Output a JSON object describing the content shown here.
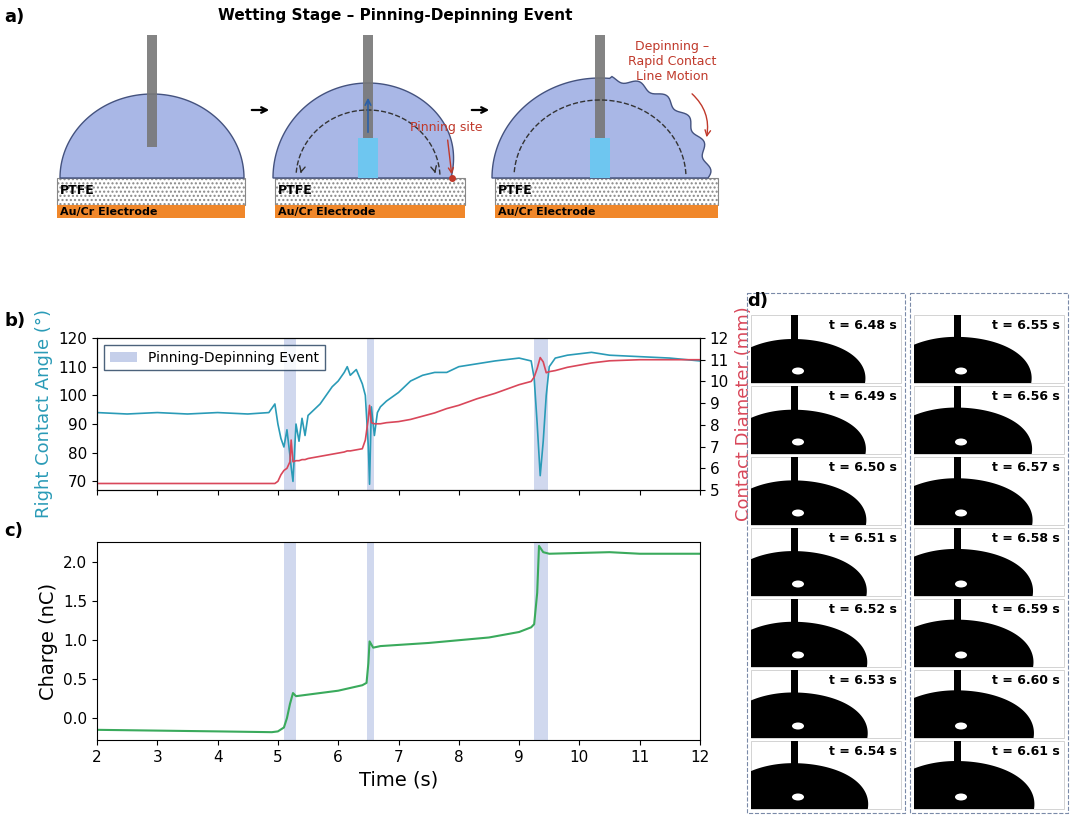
{
  "panel_labels": [
    "a)",
    "b)",
    "c)",
    "d)"
  ],
  "diagram": {
    "title": "Wetting Stage – Pinning-Depinning Event",
    "substrate_layers": [
      "PTFE",
      "Au/Cr Electrode"
    ],
    "pinning_label": "Pinning site",
    "depinning_label": "Depinning –\nRapid Contact\nLine Motion"
  },
  "chart_data": [
    {
      "type": "line",
      "ylabel": "Right Contact Angle (°)",
      "y2label": "Contact Diameter (mm)",
      "x": [
        2.0,
        2.5,
        3.0,
        3.5,
        4.0,
        4.5,
        4.85,
        4.95,
        5.0,
        5.05,
        5.1,
        5.15,
        5.2,
        5.22,
        5.25,
        5.3,
        5.35,
        5.4,
        5.45,
        5.5,
        5.6,
        5.7,
        5.8,
        5.9,
        6.0,
        6.1,
        6.15,
        6.2,
        6.3,
        6.4,
        6.45,
        6.5,
        6.52,
        6.55,
        6.6,
        6.65,
        6.7,
        6.8,
        7.0,
        7.2,
        7.4,
        7.6,
        7.8,
        8.0,
        8.3,
        8.6,
        9.0,
        9.2,
        9.25,
        9.3,
        9.35,
        9.4,
        9.45,
        9.5,
        9.6,
        9.8,
        10.2,
        10.5,
        11.0,
        11.5,
        12.0
      ],
      "series": [
        {
          "color": "#2a9bb7",
          "axis": "y",
          "values": [
            94,
            93.5,
            94,
            93.5,
            94,
            93.5,
            94,
            97,
            90,
            85,
            82,
            88,
            79,
            75,
            70,
            90,
            84,
            92,
            86,
            93,
            95,
            97,
            100,
            103,
            105,
            108,
            110,
            107,
            109,
            104,
            100,
            82,
            69,
            96,
            86,
            94,
            96,
            98,
            101,
            105,
            107,
            108,
            108,
            110,
            111,
            112,
            113,
            112,
            106,
            90,
            72,
            84,
            100,
            110,
            113,
            114,
            115,
            114,
            113.5,
            113,
            112
          ]
        },
        {
          "color": "#d9475a",
          "axis": "y2",
          "values": [
            5.3,
            5.3,
            5.3,
            5.3,
            5.3,
            5.3,
            5.3,
            5.3,
            5.4,
            5.7,
            5.9,
            6.0,
            6.3,
            7.3,
            6.3,
            6.35,
            6.35,
            6.4,
            6.4,
            6.45,
            6.5,
            6.55,
            6.6,
            6.65,
            6.7,
            6.75,
            6.8,
            6.8,
            6.85,
            6.9,
            7.3,
            8.3,
            8.9,
            8.1,
            8.05,
            8.05,
            8.05,
            8.1,
            8.15,
            8.25,
            8.4,
            8.55,
            8.75,
            8.9,
            9.2,
            9.45,
            9.85,
            10.0,
            10.2,
            10.6,
            11.1,
            10.9,
            10.4,
            10.45,
            10.5,
            10.65,
            10.85,
            10.95,
            11.0,
            11.0,
            11.0
          ]
        }
      ],
      "spans": {
        "name": "Pinning-Depinning Event",
        "color": "#c5cfea",
        "ranges": [
          [
            5.1,
            5.3
          ],
          [
            6.47,
            6.6
          ],
          [
            9.25,
            9.48
          ]
        ]
      },
      "legend": "upper left",
      "tick_labels": "y",
      "xlim": [
        2,
        12
      ],
      "xticks": [
        2,
        3,
        4,
        5,
        6,
        7,
        8,
        9,
        10,
        11,
        12
      ],
      "ylim": [
        67,
        120
      ],
      "yticks": [
        70,
        80,
        90,
        100,
        110,
        120
      ],
      "y2lim": [
        5,
        12
      ],
      "y2ticks": [
        5,
        6,
        7,
        8,
        9,
        10,
        11,
        12
      ]
    },
    {
      "type": "line",
      "xlabel": "Time (s)",
      "ylabel": "Charge (nC)",
      "x": [
        2.0,
        3.0,
        4.0,
        4.9,
        5.0,
        5.1,
        5.15,
        5.2,
        5.25,
        5.3,
        5.5,
        6.0,
        6.4,
        6.47,
        6.5,
        6.52,
        6.58,
        6.7,
        7.5,
        8.5,
        9.0,
        9.2,
        9.25,
        9.3,
        9.33,
        9.4,
        9.5,
        10.0,
        10.5,
        11.0,
        12.0
      ],
      "values": [
        -0.15,
        -0.16,
        -0.17,
        -0.18,
        -0.17,
        -0.12,
        0.0,
        0.18,
        0.32,
        0.28,
        0.3,
        0.35,
        0.42,
        0.45,
        0.7,
        0.98,
        0.9,
        0.92,
        0.96,
        1.03,
        1.1,
        1.16,
        1.2,
        1.6,
        2.2,
        2.12,
        2.1,
        2.11,
        2.12,
        2.1,
        2.1
      ],
      "color": "#3aaa5c",
      "spans": {
        "color": "#c5cfea",
        "ranges": [
          [
            5.1,
            5.3
          ],
          [
            6.47,
            6.6
          ],
          [
            9.25,
            9.48
          ]
        ]
      },
      "xlim": [
        2,
        12
      ],
      "xticks": [
        2,
        3,
        4,
        5,
        6,
        7,
        8,
        9,
        10,
        11,
        12
      ],
      "ylim": [
        -0.28,
        2.25
      ],
      "yticks": [
        {
          "value": 0,
          "label": "0.0"
        },
        0.5,
        {
          "value": 1,
          "label": "1.0"
        },
        1.5,
        {
          "value": 2,
          "label": "2.0"
        }
      ]
    }
  ],
  "frames": {
    "labels": [
      "t = 6.48 s",
      "t = 6.49 s",
      "t = 6.50 s",
      "t = 6.51 s",
      "t = 6.52 s",
      "t = 6.53 s",
      "t = 6.54 s",
      "t = 6.55 s",
      "t = 6.56 s",
      "t = 6.57 s",
      "t = 6.58 s",
      "t = 6.59 s",
      "t = 6.60 s",
      "t = 6.61 s"
    ]
  }
}
